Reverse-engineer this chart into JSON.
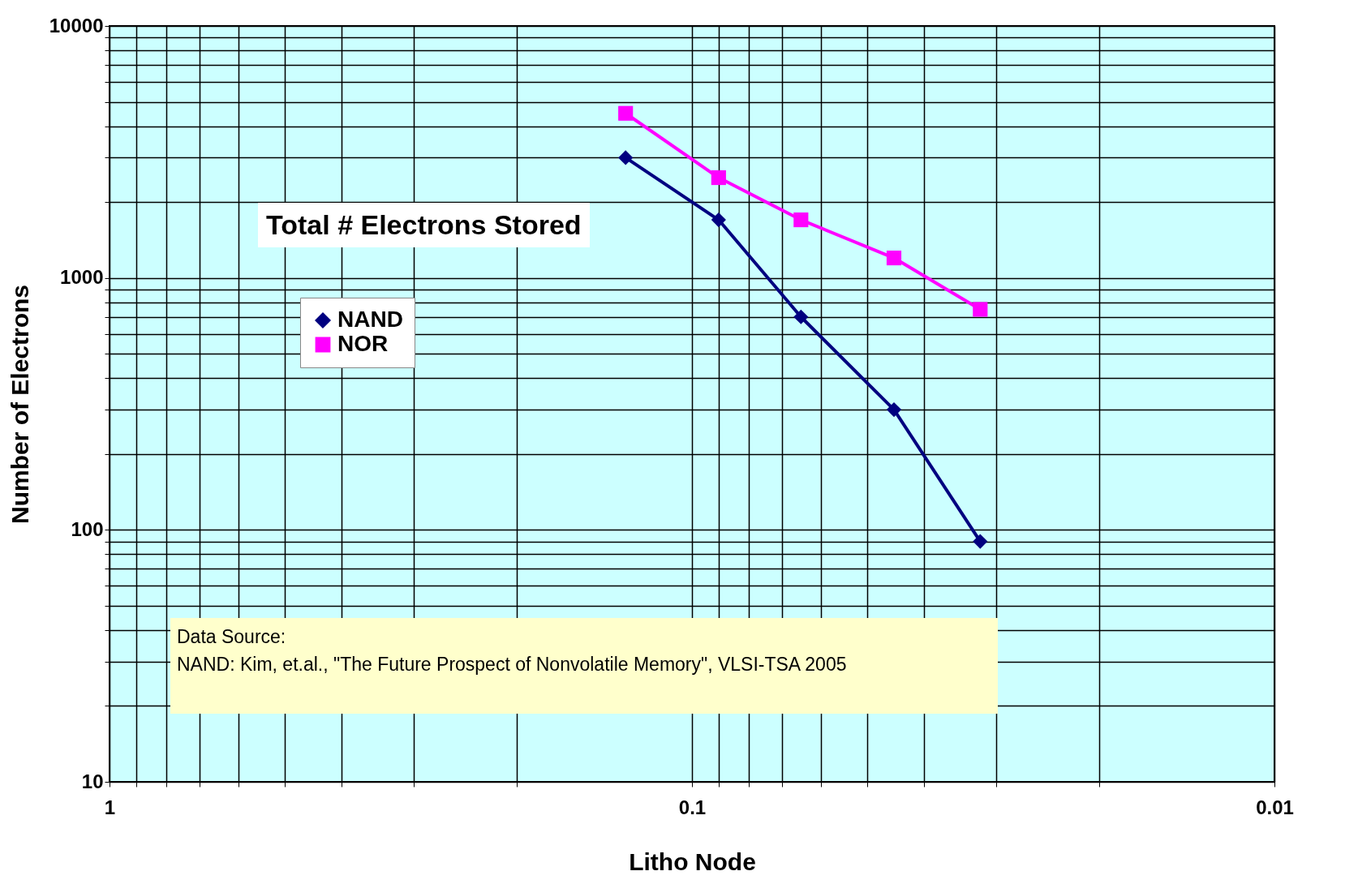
{
  "chart_data": {
    "type": "line",
    "title": "Total # Electrons Stored",
    "xlabel": "Litho Node",
    "ylabel": "Number of Electrons",
    "log": "xy",
    "grid": true,
    "legend": "top left",
    "line_style": "solid",
    "xlim": [
      1,
      0.01
    ],
    "ylim": [
      10,
      10000
    ],
    "xticks": [
      1,
      {
        "value": 0.9,
        "label": null
      },
      {
        "value": 0.8,
        "label": null
      },
      {
        "value": 0.7,
        "label": null
      },
      {
        "value": 0.6,
        "label": null
      },
      {
        "value": 0.5,
        "label": null
      },
      {
        "value": 0.4,
        "label": null
      },
      {
        "value": 0.3,
        "label": null
      },
      {
        "value": 0.2,
        "label": null
      },
      0.1,
      {
        "value": 0.09,
        "label": null
      },
      {
        "value": 0.08,
        "label": null
      },
      {
        "value": 0.07,
        "label": null
      },
      {
        "value": 0.06,
        "label": null
      },
      {
        "value": 0.05,
        "label": null
      },
      {
        "value": 0.04,
        "label": null
      },
      {
        "value": 0.03,
        "label": null
      },
      {
        "value": 0.02,
        "label": null
      },
      0.01
    ],
    "yticks": [
      10,
      {
        "value": 20,
        "label": null
      },
      {
        "value": 30,
        "label": null
      },
      {
        "value": 40,
        "label": null
      },
      {
        "value": 50,
        "label": null
      },
      {
        "value": 60,
        "label": null
      },
      {
        "value": 70,
        "label": null
      },
      {
        "value": 80,
        "label": null
      },
      {
        "value": 90,
        "label": null
      },
      100,
      {
        "value": 200,
        "label": null
      },
      {
        "value": 300,
        "label": null
      },
      {
        "value": 400,
        "label": null
      },
      {
        "value": 500,
        "label": null
      },
      {
        "value": 600,
        "label": null
      },
      {
        "value": 700,
        "label": null
      },
      {
        "value": 800,
        "label": null
      },
      {
        "value": 900,
        "label": null
      },
      1000,
      {
        "value": 2000,
        "label": null
      },
      {
        "value": 3000,
        "label": null
      },
      {
        "value": 4000,
        "label": null
      },
      {
        "value": 5000,
        "label": null
      },
      {
        "value": 6000,
        "label": null
      },
      {
        "value": 7000,
        "label": null
      },
      {
        "value": 8000,
        "label": null
      },
      {
        "value": 9000,
        "label": null
      },
      10000
    ],
    "x": [
      0.13,
      0.09,
      0.065,
      0.045,
      0.032
    ],
    "series": [
      {
        "name": "NAND",
        "color": "#000080",
        "marker": "diamond",
        "values": [
          3000,
          1700,
          700,
          300,
          90
        ]
      },
      {
        "name": "NOR",
        "color": "#ff00ff",
        "marker": "square",
        "values": [
          4500,
          2500,
          1700,
          1200,
          750
        ]
      }
    ],
    "annotations": [
      "Data Source:",
      "NAND: Kim, et.al., \"The Future Prospect of Nonvolatile Memory\", VLSI-TSA 2005"
    ]
  }
}
